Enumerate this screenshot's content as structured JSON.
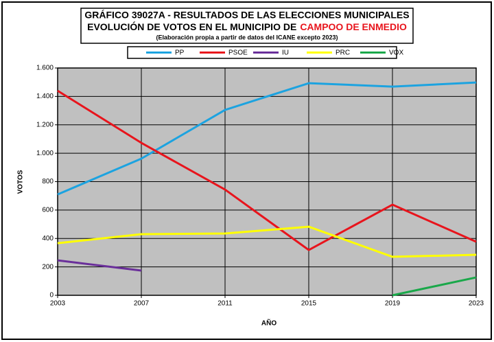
{
  "chart_data": {
    "type": "line",
    "title": "GRÁFICO 39027A - RESULTADOS DE LAS ELECCIONES MUNICIPALES",
    "title2": "EVOLUCIÓN DE VOTOS EN EL MUNICIPIO DE",
    "title_highlight": "CAMPOO DE ENMEDIO",
    "subtitle": "(Elaboración propia a partir de datos del ICANE excepto 2023)",
    "x_label": "AÑO",
    "y_label": "VOTOS",
    "x": [
      2003,
      2007,
      2011,
      2015,
      2019,
      2023
    ],
    "xlim": [
      2003,
      2023
    ],
    "xticks": [
      2003,
      2007,
      2011,
      2015,
      2019,
      2023
    ],
    "ylim": [
      0,
      1600
    ],
    "yticks": [
      0,
      200,
      400,
      600,
      800,
      {
        "value": 1000,
        "label": "1.000"
      },
      {
        "value": 1200,
        "label": "1.200"
      },
      {
        "value": 1400,
        "label": "1.400"
      },
      {
        "value": 1600,
        "label": "1.600"
      }
    ],
    "grid": true,
    "legend": "top",
    "series": [
      {
        "name": "PP",
        "color": "#1ca3e0",
        "values": [
          710,
          962,
          1305,
          1493,
          1469,
          1498
        ]
      },
      {
        "name": "PSOE",
        "color": "#e8141c",
        "values": [
          1440,
          1073,
          744,
          319,
          638,
          377
        ]
      },
      {
        "name": "IU",
        "color": "#6a2f9a",
        "values": [
          246,
          174,
          null,
          null,
          null,
          null
        ]
      },
      {
        "name": "PRC",
        "color": "#ffff00",
        "values": [
          367,
          430,
          435,
          483,
          271,
          285
        ]
      },
      {
        "name": "VOX",
        "color": "#1aa84a",
        "values": [
          null,
          null,
          null,
          null,
          0,
          126
        ]
      }
    ]
  }
}
